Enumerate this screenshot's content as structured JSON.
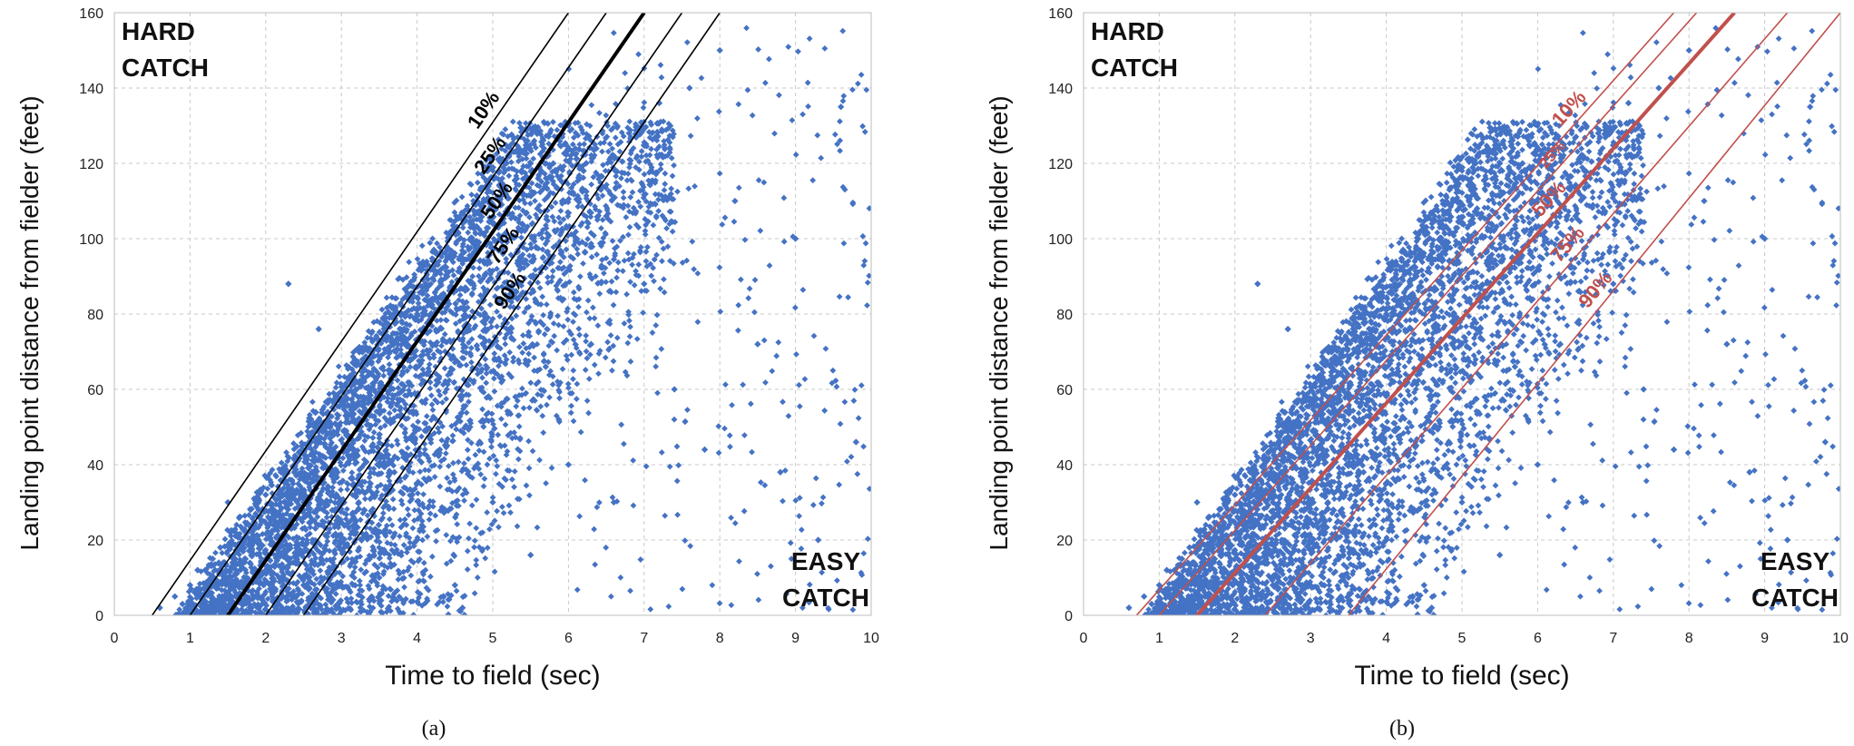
{
  "figure": {
    "panels": [
      "(a)",
      "(b)"
    ]
  },
  "chart_data": [
    {
      "type": "scatter",
      "panel_label": "(a)",
      "title": "",
      "xlabel": "Time to field (sec)",
      "ylabel": "Landing point distance from fielder (feet)",
      "xlim": [
        0,
        10
      ],
      "ylim": [
        0,
        160
      ],
      "xticks": [
        0,
        1,
        2,
        3,
        4,
        5,
        6,
        7,
        8,
        9,
        10
      ],
      "yticks": [
        0,
        20,
        40,
        60,
        80,
        100,
        120,
        140,
        160
      ],
      "grid": "dashed",
      "point_color": "#4472C4",
      "region_labels": [
        {
          "text": [
            "HARD",
            "CATCH"
          ],
          "position": "top-left"
        },
        {
          "text": [
            "EASY",
            "CATCH"
          ],
          "position": "bottom-right"
        }
      ],
      "points": [
        [
          0.6,
          2
        ],
        [
          0.8,
          5
        ],
        [
          0.9,
          3
        ],
        [
          1.0,
          8
        ],
        [
          1.1,
          12
        ],
        [
          1.2,
          6
        ],
        [
          1.3,
          15
        ],
        [
          1.4,
          18
        ],
        [
          1.5,
          10
        ],
        [
          1.6,
          22
        ],
        [
          1.7,
          14
        ],
        [
          1.8,
          28
        ],
        [
          1.9,
          20
        ],
        [
          2.0,
          32
        ],
        [
          2.0,
          12
        ],
        [
          2.1,
          26
        ],
        [
          2.2,
          38
        ],
        [
          2.3,
          18
        ],
        [
          2.4,
          42
        ],
        [
          2.5,
          30
        ],
        [
          2.5,
          8
        ],
        [
          2.6,
          46
        ],
        [
          2.7,
          24
        ],
        [
          2.8,
          50
        ],
        [
          2.9,
          36
        ],
        [
          3.0,
          56
        ],
        [
          3.0,
          14
        ],
        [
          3.1,
          44
        ],
        [
          3.2,
          60
        ],
        [
          3.3,
          28
        ],
        [
          3.4,
          64
        ],
        [
          3.5,
          48
        ],
        [
          3.5,
          10
        ],
        [
          3.6,
          70
        ],
        [
          3.7,
          38
        ],
        [
          3.8,
          74
        ],
        [
          3.9,
          54
        ],
        [
          4.0,
          80
        ],
        [
          4.0,
          20
        ],
        [
          4.1,
          62
        ],
        [
          4.2,
          84
        ],
        [
          4.3,
          44
        ],
        [
          4.4,
          90
        ],
        [
          4.5,
          68
        ],
        [
          4.5,
          8
        ],
        [
          4.6,
          94
        ],
        [
          4.7,
          50
        ],
        [
          4.8,
          98
        ],
        [
          4.9,
          76
        ],
        [
          5.0,
          104
        ],
        [
          5.0,
          30
        ],
        [
          5.1,
          84
        ],
        [
          5.2,
          108
        ],
        [
          5.3,
          58
        ],
        [
          5.4,
          112
        ],
        [
          5.5,
          90
        ],
        [
          5.5,
          16
        ],
        [
          5.6,
          116
        ],
        [
          5.7,
          66
        ],
        [
          5.8,
          120
        ],
        [
          5.9,
          96
        ],
        [
          6.0,
          124
        ],
        [
          6.0,
          40
        ],
        [
          6.1,
          100
        ],
        [
          6.2,
          118
        ],
        [
          6.3,
          72
        ],
        [
          6.5,
          106
        ],
        [
          6.6,
          30
        ],
        [
          6.8,
          128
        ],
        [
          7.0,
          88
        ],
        [
          7.2,
          136
        ],
        [
          7.4,
          60
        ],
        [
          7.6,
          140
        ],
        [
          7.8,
          44
        ],
        [
          8.0,
          150
        ],
        [
          8.2,
          110
        ],
        [
          8.5,
          72
        ],
        [
          8.8,
          38
        ],
        [
          9.0,
          100
        ],
        [
          9.3,
          20
        ],
        [
          9.6,
          135
        ],
        [
          9.8,
          46
        ],
        [
          2.3,
          88
        ],
        [
          2.7,
          76
        ],
        [
          1.5,
          30
        ],
        [
          3.4,
          5
        ],
        [
          4.6,
          2
        ]
      ],
      "percentile_lines": [
        {
          "label": "10%",
          "x_at_0": 0.5,
          "x_at_160": 6.0,
          "emphasis": false
        },
        {
          "label": "25%",
          "x_at_0": 1.0,
          "x_at_160": 6.5,
          "emphasis": false
        },
        {
          "label": "50%",
          "x_at_0": 1.5,
          "x_at_160": 7.0,
          "emphasis": true
        },
        {
          "label": "75%",
          "x_at_0": 2.0,
          "x_at_160": 7.5,
          "emphasis": false
        },
        {
          "label": "90%",
          "x_at_0": 2.5,
          "x_at_160": 8.0,
          "emphasis": false
        }
      ],
      "line_color": "#000000"
    },
    {
      "type": "scatter",
      "panel_label": "(b)",
      "title": "",
      "xlabel": "Time to field (sec)",
      "ylabel": "Landing point distance from fielder (feet)",
      "xlim": [
        0,
        10
      ],
      "ylim": [
        0,
        160
      ],
      "xticks": [
        0,
        1,
        2,
        3,
        4,
        5,
        6,
        7,
        8,
        9,
        10
      ],
      "yticks": [
        0,
        20,
        40,
        60,
        80,
        100,
        120,
        140,
        160
      ],
      "grid": "dashed",
      "point_color": "#4472C4",
      "region_labels": [
        {
          "text": [
            "HARD",
            "CATCH"
          ],
          "position": "top-left"
        },
        {
          "text": [
            "EASY",
            "CATCH"
          ],
          "position": "bottom-right"
        }
      ],
      "points": [
        [
          0.6,
          2
        ],
        [
          0.8,
          5
        ],
        [
          0.9,
          3
        ],
        [
          1.0,
          8
        ],
        [
          1.1,
          12
        ],
        [
          1.2,
          6
        ],
        [
          1.3,
          15
        ],
        [
          1.4,
          18
        ],
        [
          1.5,
          10
        ],
        [
          1.6,
          22
        ],
        [
          1.7,
          14
        ],
        [
          1.8,
          28
        ],
        [
          1.9,
          20
        ],
        [
          2.0,
          32
        ],
        [
          2.0,
          12
        ],
        [
          2.1,
          26
        ],
        [
          2.2,
          38
        ],
        [
          2.3,
          18
        ],
        [
          2.4,
          42
        ],
        [
          2.5,
          30
        ],
        [
          2.5,
          8
        ],
        [
          2.6,
          46
        ],
        [
          2.7,
          24
        ],
        [
          2.8,
          50
        ],
        [
          2.9,
          36
        ],
        [
          3.0,
          56
        ],
        [
          3.0,
          14
        ],
        [
          3.1,
          44
        ],
        [
          3.2,
          60
        ],
        [
          3.3,
          28
        ],
        [
          3.4,
          64
        ],
        [
          3.5,
          48
        ],
        [
          3.5,
          10
        ],
        [
          3.6,
          70
        ],
        [
          3.7,
          38
        ],
        [
          3.8,
          74
        ],
        [
          3.9,
          54
        ],
        [
          4.0,
          80
        ],
        [
          4.0,
          20
        ],
        [
          4.1,
          62
        ],
        [
          4.2,
          84
        ],
        [
          4.3,
          44
        ],
        [
          4.4,
          90
        ],
        [
          4.5,
          68
        ],
        [
          4.5,
          8
        ],
        [
          4.6,
          94
        ],
        [
          4.7,
          50
        ],
        [
          4.8,
          98
        ],
        [
          4.9,
          76
        ],
        [
          5.0,
          104
        ],
        [
          5.0,
          30
        ],
        [
          5.1,
          84
        ],
        [
          5.2,
          108
        ],
        [
          5.3,
          58
        ],
        [
          5.4,
          112
        ],
        [
          5.5,
          90
        ],
        [
          5.5,
          16
        ],
        [
          5.6,
          116
        ],
        [
          5.7,
          66
        ],
        [
          5.8,
          120
        ],
        [
          5.9,
          96
        ],
        [
          6.0,
          124
        ],
        [
          6.0,
          40
        ],
        [
          6.1,
          100
        ],
        [
          6.2,
          118
        ],
        [
          6.3,
          72
        ],
        [
          6.5,
          106
        ],
        [
          6.6,
          30
        ],
        [
          6.8,
          128
        ],
        [
          7.0,
          88
        ],
        [
          7.2,
          136
        ],
        [
          7.4,
          60
        ],
        [
          7.6,
          140
        ],
        [
          7.8,
          44
        ],
        [
          8.0,
          150
        ],
        [
          8.2,
          110
        ],
        [
          8.5,
          72
        ],
        [
          8.8,
          38
        ],
        [
          9.0,
          100
        ],
        [
          9.3,
          20
        ],
        [
          9.6,
          135
        ],
        [
          9.8,
          46
        ],
        [
          2.3,
          88
        ],
        [
          2.7,
          76
        ],
        [
          1.5,
          30
        ],
        [
          3.4,
          5
        ],
        [
          4.6,
          2
        ]
      ],
      "percentile_lines": [
        {
          "label": "10%",
          "x_at_0": 0.7,
          "x_at_160": 7.8,
          "emphasis": false
        },
        {
          "label": "25%",
          "x_at_0": 1.0,
          "x_at_160": 8.1,
          "emphasis": false
        },
        {
          "label": "50%",
          "x_at_0": 1.5,
          "x_at_160": 8.6,
          "emphasis": true
        },
        {
          "label": "75%",
          "x_at_0": 2.4,
          "x_at_160": 9.3,
          "emphasis": false
        },
        {
          "label": "90%",
          "x_at_0": 3.5,
          "x_at_160": 10.0,
          "emphasis": false
        }
      ],
      "line_color": "#C0504D"
    }
  ]
}
